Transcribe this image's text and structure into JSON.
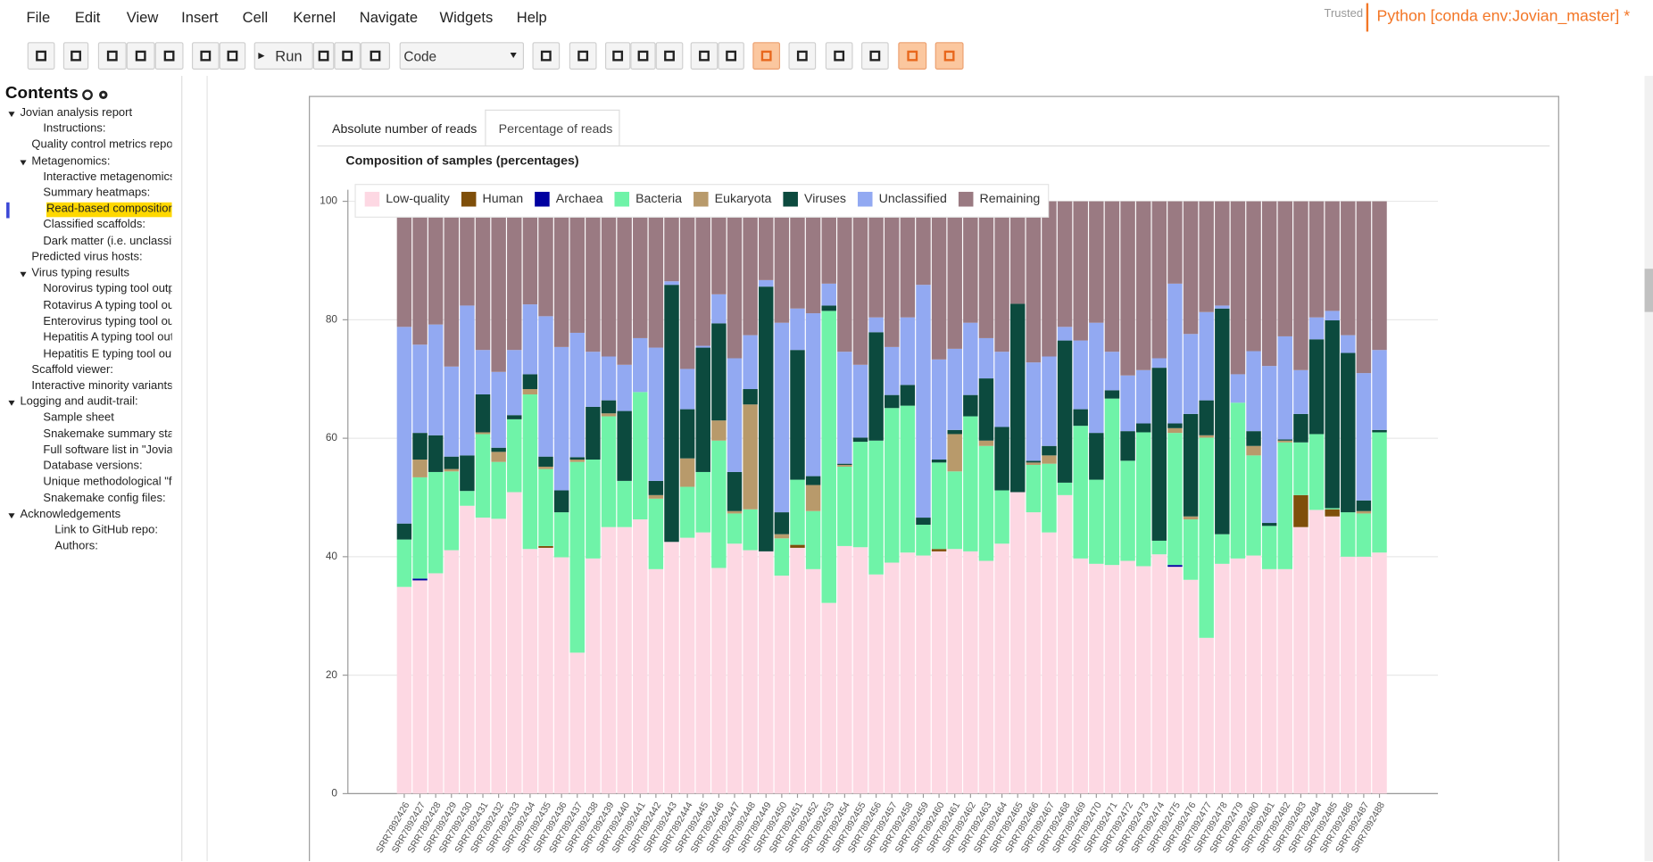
{
  "menu": [
    "File",
    "Edit",
    "View",
    "Insert",
    "Cell",
    "Kernel",
    "Navigate",
    "Widgets",
    "Help"
  ],
  "kernel": {
    "trusted": "Trusted",
    "name": "Python [conda env:Jovian_master] *"
  },
  "toolbar": {
    "run": "Run",
    "cell_type": "Code"
  },
  "toc": {
    "title": "Contents",
    "items": [
      "Jovian analysis report",
      "Instructions:",
      "Quality control metrics repor",
      "Metagenomics:",
      "Interactive metagenomics",
      "Summary heatmaps:",
      "Read-based composition",
      "Classified scaffolds:",
      "Dark matter (i.e. unclassif",
      "Predicted virus hosts:",
      "Virus typing results",
      "Norovirus typing tool outp",
      "Rotavirus A typing tool ou",
      "Enterovirus typing tool ou",
      "Hepatitis A typing tool out",
      "Hepatitis E typing tool out",
      "Scaffold viewer:",
      "Interactive minority variants",
      "Logging and audit-trail:",
      "Sample sheet",
      "Snakemake summary sta",
      "Full software list in \"Jovia",
      "Database versions:",
      "Unique methodological \"fi",
      "Snakemake config files:",
      "Acknowledgements",
      "Link to GitHub repo:",
      "Authors:"
    ]
  },
  "tabs": [
    "Absolute number of reads",
    "Percentage of reads"
  ],
  "chart_data": {
    "type": "bar",
    "stacked": true,
    "title": "Composition of samples (percentages)",
    "categories": [
      "SRR7892426",
      "SRR7892427",
      "SRR7892428",
      "SRR7892429",
      "SRR7892430",
      "SRR7892431",
      "SRR7892432",
      "SRR7892433",
      "SRR7892434",
      "SRR7892435",
      "SRR7892436",
      "SRR7892437",
      "SRR7892438",
      "SRR7892439",
      "SRR7892440",
      "SRR7892441",
      "SRR7892442",
      "SRR7892443",
      "SRR7892444",
      "SRR7892445",
      "SRR7892446",
      "SRR7892447",
      "SRR7892448",
      "SRR7892449",
      "SRR7892450",
      "SRR7892451",
      "SRR7892452",
      "SRR7892453",
      "SRR7892454",
      "SRR7892455",
      "SRR7892456",
      "SRR7892457",
      "SRR7892458",
      "SRR7892459",
      "SRR7892460",
      "SRR7892461",
      "SRR7892462",
      "SRR7892463",
      "SRR7892464",
      "SRR7892465",
      "SRR7892466",
      "SRR7892467",
      "SRR7892468",
      "SRR7892469",
      "SRR7892470",
      "SRR7892471",
      "SRR7892472",
      "SRR7892473",
      "SRR7892474",
      "SRR7892475",
      "SRR7892476",
      "SRR7892477",
      "SRR7892478",
      "SRR7892479",
      "SRR7892480",
      "SRR7892481",
      "SRR7892482",
      "SRR7892483",
      "SRR7892484",
      "SRR7892485",
      "SRR7892486",
      "SRR7892487",
      "SRR7892488"
    ],
    "series": [
      {
        "name": "Low-quality",
        "color": "#fdd8e3",
        "values": [
          34.9,
          36.0,
          37.2,
          41.1,
          48.6,
          46.6,
          46.4,
          50.9,
          41.3,
          41.5,
          39.9,
          23.8,
          39.7,
          45.0,
          45.0,
          46.3,
          37.9,
          42.5,
          43.2,
          44.1,
          38.1,
          42.2,
          41.1,
          40.9,
          36.8,
          41.5,
          37.9,
          32.2,
          41.8,
          41.6,
          37.0,
          39.0,
          40.7,
          40.2,
          40.9,
          41.3,
          40.9,
          39.3,
          42.2,
          50.9,
          47.5,
          44.1,
          50.4,
          39.7,
          38.8,
          38.6,
          39.3,
          38.4,
          40.4,
          38.3,
          36.1,
          26.3,
          38.8,
          39.7,
          40.2,
          37.9,
          37.9,
          45.0,
          47.9,
          46.8,
          40.0,
          40.0,
          40.7
        ]
      },
      {
        "name": "Human",
        "color": "#7f4f0a",
        "values": [
          0,
          0,
          0,
          0,
          0,
          0,
          0,
          0,
          0,
          0.3,
          0,
          0,
          0,
          0,
          0,
          0,
          0,
          0,
          0,
          0,
          0,
          0,
          0,
          0,
          0,
          0.5,
          0,
          0,
          0,
          0,
          0,
          0,
          0,
          0,
          0.4,
          0,
          0,
          0,
          0,
          0,
          0,
          0,
          0,
          0,
          0,
          0,
          0,
          0,
          0,
          0,
          0,
          0,
          0,
          0,
          0,
          0,
          0,
          5.4,
          0,
          1.2,
          0,
          0,
          0
        ]
      },
      {
        "name": "Archaea",
        "color": "#0000a0",
        "values": [
          0,
          0.3,
          0,
          0,
          0,
          0,
          0,
          0,
          0,
          0,
          0,
          0,
          0,
          0,
          0,
          0,
          0,
          0,
          0,
          0,
          0,
          0,
          0,
          0,
          0,
          0,
          0,
          0,
          0,
          0,
          0,
          0,
          0,
          0,
          0,
          0,
          0,
          0,
          0,
          0,
          0,
          0,
          0,
          0,
          0,
          0,
          0,
          0,
          0,
          0.3,
          0,
          0,
          0,
          0,
          0,
          0,
          0,
          0,
          0,
          0,
          0,
          0,
          0
        ]
      },
      {
        "name": "Bacteria",
        "color": "#6ff3a8",
        "values": [
          8.0,
          17.1,
          17.1,
          13.3,
          2.5,
          14.1,
          9.6,
          12.3,
          26.1,
          13.0,
          7.6,
          32.2,
          16.7,
          18.7,
          7.8,
          21.5,
          11.9,
          0,
          8.6,
          10.2,
          21.5,
          5.1,
          6.9,
          0,
          6.3,
          11.0,
          9.8,
          49.3,
          13.4,
          17.8,
          22.6,
          26.1,
          24.8,
          5.2,
          14.6,
          13.1,
          22.8,
          19.4,
          9.0,
          0,
          8.0,
          11.6,
          2.1,
          22.4,
          14.2,
          28.1,
          16.9,
          22.6,
          2.3,
          22.3,
          10.2,
          33.8,
          5.0,
          26.3,
          16.9,
          7.3,
          21.4,
          8.9,
          12.8,
          0.2,
          7.5,
          7.3,
          20.3
        ]
      },
      {
        "name": "Eukaryota",
        "color": "#b89a6b",
        "values": [
          0,
          3.0,
          0,
          0.4,
          0,
          0.3,
          1.7,
          0,
          0.9,
          0.4,
          0,
          0.4,
          0,
          0.5,
          0,
          0,
          0.6,
          0,
          4.8,
          0,
          3.4,
          0.4,
          17.7,
          0,
          0.7,
          0,
          4.4,
          0,
          0.3,
          0,
          0,
          0,
          0,
          0,
          0,
          6.3,
          0,
          0.9,
          0,
          0,
          0.4,
          1.4,
          0,
          0,
          0,
          0,
          0,
          0,
          0,
          0.8,
          0.5,
          0.4,
          0,
          0,
          1.6,
          0,
          0.3,
          0,
          0,
          0,
          0,
          0.4,
          0
        ]
      },
      {
        "name": "Viruses",
        "color": "#0c4a3e",
        "values": [
          2.7,
          4.5,
          6.2,
          2.1,
          6.0,
          6.4,
          0.7,
          0.7,
          2.5,
          1.7,
          3.7,
          0.4,
          8.9,
          2.2,
          11.8,
          0,
          2.4,
          43.4,
          8.3,
          21.0,
          16.4,
          6.6,
          2.6,
          44.7,
          3.7,
          21.9,
          1.5,
          0.9,
          0.2,
          0.7,
          18.3,
          2.2,
          3.5,
          1.2,
          0.5,
          0.7,
          3.6,
          10.5,
          10.7,
          31.8,
          0.3,
          1.6,
          24.0,
          2.8,
          7.9,
          1.4,
          5.0,
          1.5,
          29.2,
          0.8,
          17.3,
          5.9,
          38.1,
          0,
          2.5,
          0.5,
          0.2,
          4.8,
          16.0,
          31.7,
          26.9,
          1.8,
          0.4
        ]
      },
      {
        "name": "Unclassified",
        "color": "#92a9f2",
        "values": [
          33.2,
          14.9,
          18.7,
          15.2,
          25.3,
          7.5,
          12.8,
          11.0,
          11.8,
          23.7,
          24.2,
          21.0,
          9.3,
          7.4,
          7.8,
          9.1,
          22.5,
          0.6,
          6.8,
          0.3,
          4.9,
          19.2,
          9.1,
          1.1,
          32.0,
          7.0,
          27.5,
          3.7,
          18.9,
          12.3,
          2.5,
          8.1,
          11.4,
          39.3,
          16.9,
          13.7,
          12.2,
          6.8,
          12.7,
          0,
          16.6,
          15.1,
          2.3,
          11.6,
          18.6,
          6.5,
          9.4,
          9.0,
          1.6,
          23.6,
          13.5,
          14.9,
          0.5,
          4.8,
          13.5,
          26.5,
          17.4,
          7.4,
          3.7,
          1.6,
          3.0,
          21.5,
          13.5
        ]
      },
      {
        "name": "Remaining",
        "color": "#9a7a82",
        "values": [
          21.2,
          24.2,
          20.8,
          27.9,
          17.6,
          25.1,
          28.8,
          25.1,
          17.4,
          19.4,
          24.6,
          22.2,
          25.4,
          26.2,
          27.6,
          23.1,
          24.7,
          13.5,
          28.3,
          24.4,
          15.7,
          26.5,
          22.6,
          13.3,
          20.5,
          18.1,
          18.9,
          13.9,
          25.4,
          27.6,
          19.6,
          24.6,
          19.6,
          14.1,
          26.7,
          24.9,
          20.5,
          23.1,
          25.4,
          17.3,
          27.2,
          26.2,
          21.2,
          23.5,
          20.5,
          25.4,
          29.4,
          28.5,
          26.5,
          13.9,
          22.4,
          18.7,
          17.6,
          29.2,
          25.3,
          27.8,
          22.8,
          28.5,
          19.6,
          18.5,
          22.6,
          29.0,
          25.1
        ]
      }
    ],
    "ylim": [
      0,
      100
    ],
    "yticks": [
      0,
      20,
      40,
      60,
      80,
      100
    ],
    "grid": true,
    "legend": "top-left"
  }
}
